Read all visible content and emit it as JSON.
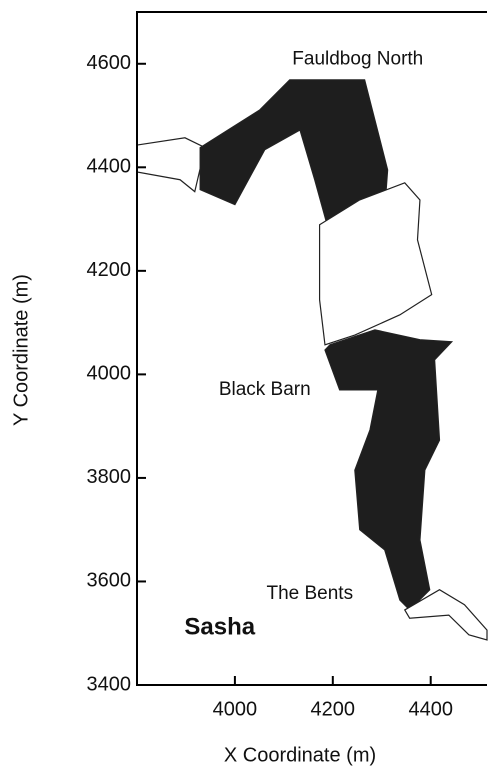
{
  "chart_data": {
    "type": "map",
    "x_label": "X Coordinate (m)",
    "y_label": "Y Coordinate (m)",
    "xlim": [
      3800,
      4515
    ],
    "ylim": [
      3400,
      4700
    ],
    "xticks": [
      4000,
      4200,
      4400
    ],
    "yticks": [
      3400,
      3600,
      3800,
      4000,
      4200,
      4400,
      4600
    ],
    "regions": [
      {
        "color": "#fff",
        "x": [
          3800,
          3898,
          3939,
          3918,
          3888,
          3800
        ],
        "y": [
          4443,
          4457,
          4438,
          4353,
          4376,
          4391
        ]
      },
      {
        "color": "#1e1e1e",
        "x": [
          3929,
          4051,
          4112,
          4265,
          4312,
          4306,
          4194,
          4163,
          4133,
          4061,
          4000,
          3929
        ],
        "y": [
          4438,
          4511,
          4569,
          4569,
          4395,
          4318,
          4270,
          4376,
          4472,
          4434,
          4328,
          4357
        ]
      },
      {
        "color": "#fff",
        "x": [
          4173,
          4255,
          4347,
          4378,
          4373,
          4402,
          4337,
          4245,
          4184,
          4173
        ],
        "y": [
          4289,
          4337,
          4370,
          4337,
          4260,
          4154,
          4115,
          4076,
          4057,
          4144
        ]
      },
      {
        "color": "#1e1e1e",
        "x": [
          4194,
          4286,
          4378,
          4443,
          4408,
          4418,
          4388,
          4378,
          4398,
          4357,
          4337,
          4306,
          4255,
          4245,
          4276,
          4292,
          4214,
          4184
        ],
        "y": [
          4057,
          4086,
          4067,
          4063,
          4028,
          3873,
          3815,
          3680,
          3584,
          3545,
          3564,
          3661,
          3700,
          3815,
          3893,
          3970,
          3970,
          4047
        ]
      },
      {
        "color": "#fff",
        "x": [
          4347,
          4418,
          4469,
          4515,
          4515,
          4478,
          4437,
          4357
        ],
        "y": [
          3545,
          3584,
          3555,
          3506,
          3487,
          3497,
          3535,
          3529
        ]
      }
    ],
    "annotations": [
      {
        "text": "Fauldbog North",
        "x": 4251,
        "y": 4608
      },
      {
        "text": "Black Barn",
        "x": 4061,
        "y": 3970
      },
      {
        "text": "The Bents",
        "x": 4153,
        "y": 3576
      },
      {
        "text": "Sasha",
        "x": 3969,
        "y": 3510,
        "bold": true
      }
    ]
  }
}
